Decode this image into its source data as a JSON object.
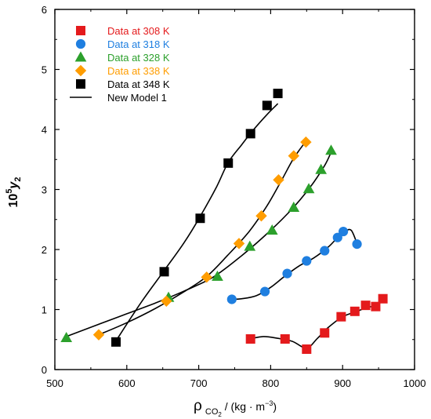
{
  "chart_data": {
    "type": "scatter",
    "xlabel": {
      "main": "ρ",
      "sub": "CO",
      "sub2": "2",
      "unit": " / (kg · m",
      "sup": "−3",
      "close": ")"
    },
    "ylabel": {
      "prefix": "10",
      "sup": "5",
      "var": "y",
      "sub": "2"
    },
    "xlim": [
      500,
      1000
    ],
    "ylim": [
      0,
      6
    ],
    "xticks": [
      "500",
      "600",
      "700",
      "800",
      "900",
      "1000"
    ],
    "yticks": [
      "0",
      "1",
      "2",
      "3",
      "4",
      "5",
      "6"
    ],
    "xtick_values": [
      500,
      600,
      700,
      800,
      900,
      1000
    ],
    "ytick_values": [
      0,
      1,
      2,
      3,
      4,
      5,
      6
    ],
    "legend_placement": "top-left",
    "series": [
      {
        "name": "Data at 308 K",
        "marker": "square",
        "color": "#e41a1c",
        "x": [
          772,
          820,
          850,
          875,
          898,
          917,
          932,
          946,
          956
        ],
        "y": [
          0.51,
          0.51,
          0.34,
          0.61,
          0.88,
          0.97,
          1.07,
          1.05,
          1.18
        ],
        "curve": [
          [
            770,
            0.51
          ],
          [
            790,
            0.55
          ],
          [
            810,
            0.52
          ],
          [
            830,
            0.47
          ],
          [
            850,
            0.36
          ],
          [
            865,
            0.52
          ],
          [
            880,
            0.7
          ],
          [
            900,
            0.88
          ],
          [
            920,
            0.97
          ],
          [
            935,
            1.04
          ],
          [
            945,
            1.06
          ],
          [
            955,
            1.17
          ]
        ]
      },
      {
        "name": "Data at 318 K",
        "marker": "circle",
        "color": "#1f7fe0",
        "x": [
          746,
          792,
          823,
          850,
          875,
          893,
          901,
          920
        ],
        "y": [
          1.17,
          1.3,
          1.6,
          1.81,
          1.98,
          2.2,
          2.3,
          2.09
        ],
        "curve": [
          [
            746,
            1.17
          ],
          [
            760,
            1.18
          ],
          [
            780,
            1.23
          ],
          [
            800,
            1.37
          ],
          [
            820,
            1.56
          ],
          [
            840,
            1.73
          ],
          [
            860,
            1.86
          ],
          [
            880,
            2.04
          ],
          [
            893,
            2.2
          ],
          [
            903,
            2.3
          ],
          [
            912,
            2.32
          ],
          [
            920,
            2.1
          ]
        ]
      },
      {
        "name": "Data at 328 K",
        "marker": "triangle",
        "color": "#2ca02c",
        "x": [
          516,
          658,
          726,
          771,
          802,
          832,
          853,
          870,
          884
        ],
        "y": [
          0.53,
          1.2,
          1.55,
          2.05,
          2.32,
          2.7,
          3.01,
          3.33,
          3.65
        ],
        "curve": [
          [
            516,
            0.55
          ],
          [
            560,
            0.75
          ],
          [
            600,
            0.93
          ],
          [
            640,
            1.11
          ],
          [
            680,
            1.31
          ],
          [
            720,
            1.54
          ],
          [
            760,
            1.9
          ],
          [
            800,
            2.32
          ],
          [
            830,
            2.68
          ],
          [
            855,
            3.04
          ],
          [
            875,
            3.4
          ],
          [
            884,
            3.62
          ]
        ]
      },
      {
        "name": "Data at 338 K",
        "marker": "diamond",
        "color": "#ff9d00",
        "x": [
          561,
          655,
          711,
          756,
          787,
          811,
          832,
          849
        ],
        "y": [
          0.58,
          1.14,
          1.54,
          2.1,
          2.56,
          3.16,
          3.56,
          3.79
        ],
        "curve": [
          [
            561,
            0.58
          ],
          [
            600,
            0.78
          ],
          [
            640,
            1.02
          ],
          [
            680,
            1.3
          ],
          [
            711,
            1.55
          ],
          [
            740,
            1.9
          ],
          [
            770,
            2.3
          ],
          [
            795,
            2.73
          ],
          [
            815,
            3.15
          ],
          [
            832,
            3.52
          ],
          [
            850,
            3.82
          ]
        ]
      },
      {
        "name": "Data at 348 K",
        "marker": "square",
        "color": "#000000",
        "x": [
          585,
          652,
          702,
          741,
          772,
          795,
          810
        ],
        "y": [
          0.46,
          1.63,
          2.52,
          3.44,
          3.93,
          4.4,
          4.6
        ],
        "curve": [
          [
            585,
            0.48
          ],
          [
            620,
            1.12
          ],
          [
            652,
            1.65
          ],
          [
            680,
            2.12
          ],
          [
            702,
            2.55
          ],
          [
            725,
            3.05
          ],
          [
            741,
            3.45
          ],
          [
            760,
            3.75
          ],
          [
            775,
            3.98
          ],
          [
            795,
            4.25
          ],
          [
            810,
            4.43
          ]
        ]
      },
      {
        "name": "New Model 1",
        "marker": "line",
        "color": "#000000"
      }
    ]
  }
}
